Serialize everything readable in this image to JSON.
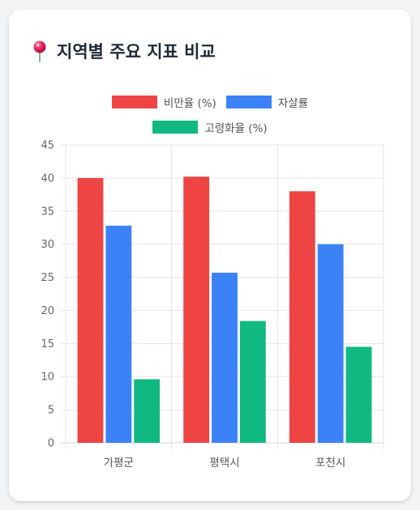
{
  "header": {
    "icon": "pin-icon",
    "title": "지역별 주요 지표 비교"
  },
  "chart_data": {
    "type": "bar",
    "categories": [
      "가평군",
      "평택시",
      "포천시"
    ],
    "series": [
      {
        "name": "비만율 (%)",
        "values": [
          40.0,
          40.2,
          38.0
        ],
        "color": "#ef4444"
      },
      {
        "name": "자살률",
        "values": [
          32.8,
          25.7,
          30.0
        ],
        "color": "#3b82f6"
      },
      {
        "name": "고령화율 (%)",
        "values": [
          9.6,
          18.4,
          14.5
        ],
        "color": "#10b981"
      }
    ],
    "ylim": [
      0,
      45
    ],
    "yticks": [
      0,
      5,
      10,
      15,
      20,
      25,
      30,
      35,
      40,
      45
    ],
    "grid": true,
    "legend_position": "top"
  }
}
